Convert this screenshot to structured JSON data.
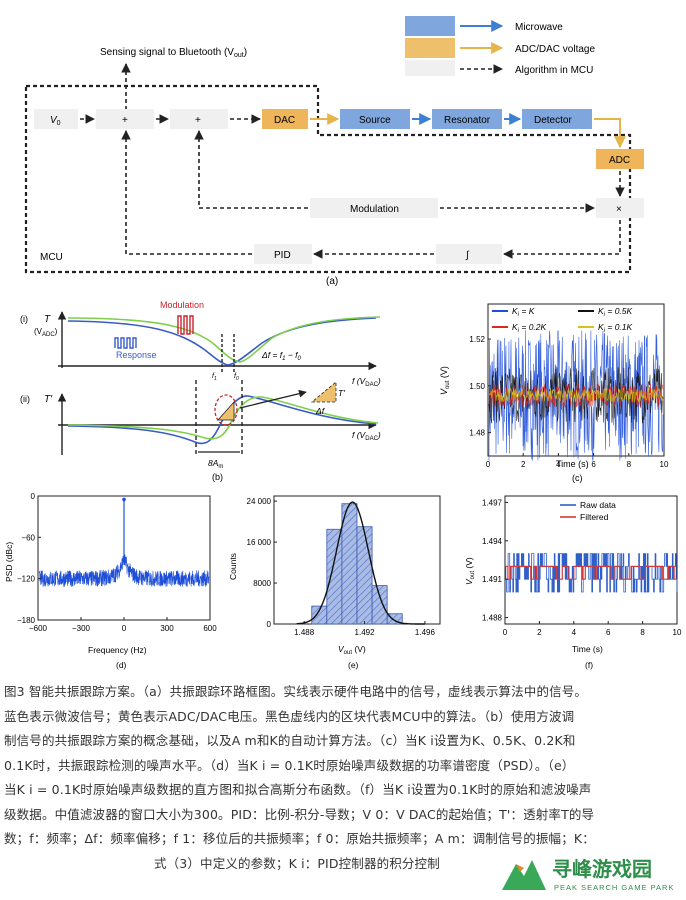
{
  "panel_a": {
    "legend": {
      "microwave": "Microwave",
      "adc_dac": "ADC/DAC voltage",
      "algorithm": "Algorithm in MCU"
    },
    "sensing_label": "Sensing signal to Bluetooth (V",
    "sensing_sub": "out",
    "v0": "V",
    "v0_sub": "0",
    "plus": "+",
    "times": "×",
    "dac": "DAC",
    "source": "Source",
    "resonator": "Resonator",
    "detector": "Detector",
    "adc": "ADC",
    "modulation": "Modulation",
    "pid": "PID",
    "integral": "∫",
    "mcu": "MCU",
    "panel_label": "(a)"
  },
  "panel_b": {
    "i": "(i)",
    "ii": "(ii)",
    "T": "T",
    "T_unit": "(V",
    "T_unit_sub": "ADC",
    "Tprime": "T'",
    "modulation": "Modulation",
    "response": "Response",
    "delta_f": "Δf = f",
    "delta_f_sub1": "1",
    "delta_f_mid": " − f",
    "delta_f_sub0": "0",
    "f_axis": "f (V",
    "f_axis_sub": "DAC",
    "f1": "f",
    "f1_sub": "1",
    "f0": "f",
    "f0_sub": "0",
    "tri_T": "T'",
    "tri_df": "Δf",
    "eight_am": "8A",
    "eight_am_sub": "m",
    "panel_label": "(b)"
  },
  "chart_data": [
    {
      "panel": "c",
      "type": "line",
      "ylabel": "V",
      "ylabel_sub": "out",
      "ylabel_unit": " (V)",
      "xlabel": "Time (s)",
      "xlim": [
        0,
        10
      ],
      "ylim": [
        1.47,
        1.535
      ],
      "xticks": [
        "0",
        "2",
        "4",
        "6",
        "8",
        "10"
      ],
      "yticks": [
        "1.48",
        "1.50",
        "1.52"
      ],
      "legend": [
        {
          "label": "K",
          "sub": "i",
          "eq": " = K",
          "color": "#1f4fd8"
        },
        {
          "label": "K",
          "sub": "i",
          "eq": " = 0.5K",
          "color": "#111111"
        },
        {
          "label": "K",
          "sub": "i",
          "eq": " = 0.2K",
          "color": "#e0241b"
        },
        {
          "label": "K",
          "sub": "i",
          "eq": " = 0.1K",
          "color": "#d6c21c"
        }
      ],
      "series_center": 1.496,
      "series_halfwidth": [
        0.028,
        0.012,
        0.005,
        0.003
      ],
      "panel_label": "(c)"
    },
    {
      "panel": "d",
      "type": "line",
      "ylabel": "PSD (dBc)",
      "xlabel": "Frequency (Hz)",
      "xlim": [
        -600,
        600
      ],
      "ylim": [
        -180,
        0
      ],
      "xticks": [
        "−600",
        "−300",
        "0",
        "300",
        "600"
      ],
      "yticks": [
        "0",
        "−60",
        "−120",
        "−180"
      ],
      "noise_floor": -120,
      "peak": -5,
      "color": "#1f4fd8",
      "panel_label": "(d)"
    },
    {
      "panel": "e",
      "type": "bar",
      "ylabel": "Counts",
      "xlabel": "V",
      "xlabel_sub": "out",
      "xlabel_unit": " (V)",
      "xlim": [
        1.486,
        1.497
      ],
      "ylim": [
        0,
        25000
      ],
      "xticks": [
        "1.488",
        "1.492",
        "1.496"
      ],
      "yticks": [
        "0",
        "8000",
        "16 000",
        "24 000"
      ],
      "bins": [
        1.489,
        1.49,
        1.491,
        1.492,
        1.493,
        1.494
      ],
      "values": [
        3500,
        18500,
        23500,
        19000,
        7500,
        2000
      ],
      "fit_mean": 1.4912,
      "fit_sigma": 0.00105,
      "fit_peak": 23800,
      "panel_label": "(e)"
    },
    {
      "panel": "f",
      "type": "line",
      "ylabel": "V",
      "ylabel_sub": "out",
      "ylabel_unit": " (V)",
      "xlabel": "Time (s)",
      "xlim": [
        0,
        10
      ],
      "ylim": [
        1.4875,
        1.4975
      ],
      "xticks": [
        "0",
        "2",
        "4",
        "6",
        "8",
        "10"
      ],
      "yticks": [
        "1.488",
        "1.491",
        "1.494",
        "1.497"
      ],
      "legend": [
        {
          "label": "Raw data",
          "color": "#2f5fc9"
        },
        {
          "label": "Filtered",
          "color": "#d23a3a"
        }
      ],
      "raw_levels": [
        1.49,
        1.491,
        1.492,
        1.493
      ],
      "panel_label": "(f)"
    }
  ],
  "caption": {
    "line1": "图3 智能共振跟踪方案。（a）共振跟踪环路框图。实线表示硬件电路中的信号，虚线表示算法中的信号。",
    "line2": "蓝色表示微波信号；黄色表示ADC/DAC电压。黑色虚线内的区块代表MCU中的算法。（b）使用方波调",
    "line3": "制信号的共振跟踪方案的概念基础，以及A m和K的自动计算方法。（c）当K i设置为K、0.5K、0.2K和",
    "line4": "0.1K时，共振跟踪检测的噪声水平。（d）当K i = 0.1K时原始噪声级数据的功率谱密度（PSD）。（e）",
    "line5": "当K i = 0.1K时原始噪声级数据的直方图和拟合高斯分布函数。（f）当K i设置为0.1K时的原始和滤波噪声",
    "line6": "级数据。中值滤波器的窗口大小为300。PID：比例-积分-导数；V 0：V DAC的起始值；T'：透射率T的导",
    "line7": "数；f：频率；Δf：频率偏移；f 1：移位后的共振频率；f 0：原始共振频率；A m：调制信号的振幅；K：",
    "line8": "式（3）中定义的参数；K i：PID控制器的积分控制"
  },
  "watermark": {
    "title": "寻峰游戏园",
    "subtitle": "PEAK SEARCH GAME PARK"
  },
  "colors": {
    "microwave_blue": "#3d7fd1",
    "block_blue": "#7fa6dd",
    "adc_yellow": "#e7b44a",
    "block_yellow": "#efb55a",
    "gray_block": "#f0f0f0",
    "green_curve": "#7fcf4a",
    "red_modulation": "#c9242b"
  }
}
